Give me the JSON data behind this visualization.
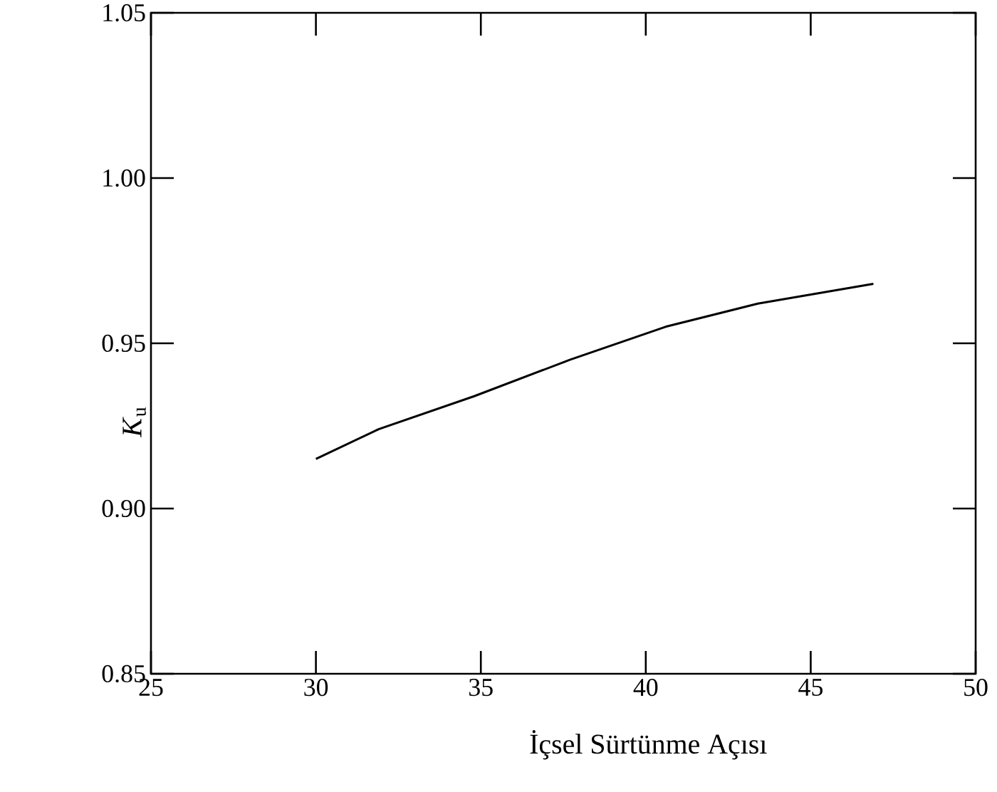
{
  "chart_data": {
    "type": "line",
    "xlabel": "İçsel  Sürtünme  Açısı",
    "ylabel": "*K*$_{u}$",
    "x": [
      30.0,
      31.9,
      34.8,
      37.7,
      40.6,
      43.4,
      46.9
    ],
    "series": [
      {
        "color": "#000000",
        "values": [
          0.915,
          0.924,
          0.934,
          0.945,
          0.955,
          0.962,
          0.968
        ]
      }
    ],
    "xlim": [
      25,
      50
    ],
    "xticks": [
      25,
      30,
      35,
      40,
      45,
      50
    ],
    "ylim": [
      0.85,
      1.05
    ],
    "yticks": [
      {
        "value": 0.85,
        "label": "0.85"
      },
      {
        "value": 0.9,
        "label": "0.90"
      },
      {
        "value": 0.95,
        "label": "0.95"
      },
      {
        "value": 1.0,
        "label": "1.00"
      },
      {
        "value": 1.05,
        "label": "1.05"
      }
    ]
  }
}
